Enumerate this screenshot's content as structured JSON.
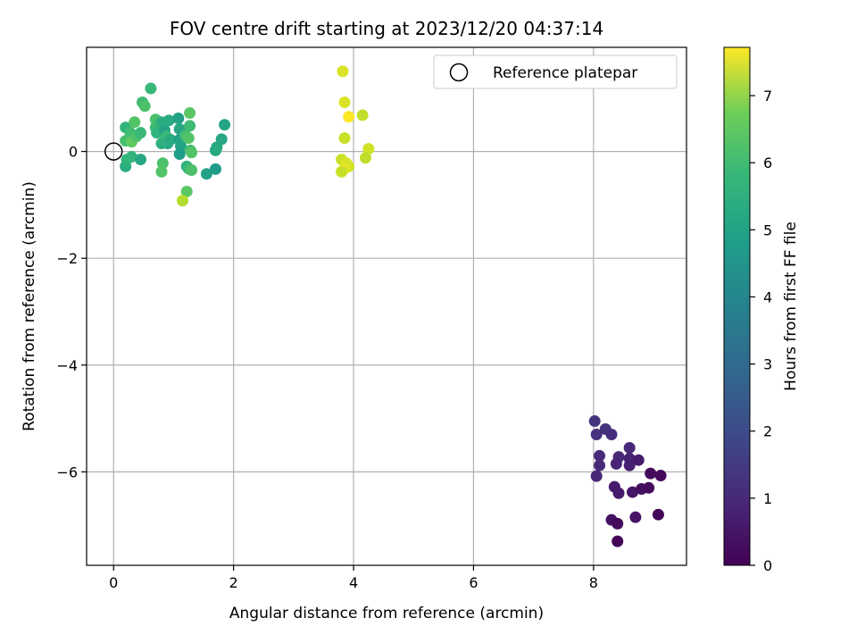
{
  "chart_data": {
    "type": "scatter",
    "title": "FOV centre drift starting at 2023/12/20 04:37:14",
    "xlabel": "Angular distance from reference (arcmin)",
    "ylabel": "Rotation from reference (arcmin)",
    "xlim": [
      -0.45,
      9.55
    ],
    "ylim": [
      -7.75,
      1.95
    ],
    "xticks": [
      0,
      2,
      4,
      6,
      8
    ],
    "yticks": [
      0,
      -2,
      -4,
      -6
    ],
    "xtick_labels": [
      "0",
      "2",
      "4",
      "6",
      "8"
    ],
    "ytick_labels": [
      "0",
      "−2",
      "−4",
      "−6"
    ],
    "grid": true,
    "legend": {
      "position": "top-right",
      "entries": [
        "Reference platepar"
      ]
    },
    "reference_point": {
      "x": 0,
      "y": 0
    },
    "colorbar": {
      "label": "Hours from first FF file",
      "range": [
        0,
        7.72
      ],
      "ticks": [
        0,
        1,
        2,
        3,
        4,
        5,
        6,
        7
      ],
      "colormap": "viridis"
    },
    "points": [
      {
        "x": 8.02,
        "y": -5.05,
        "c": 1.2
      },
      {
        "x": 8.05,
        "y": -5.3,
        "c": 1.1
      },
      {
        "x": 8.2,
        "y": -5.2,
        "c": 1.15
      },
      {
        "x": 8.3,
        "y": -5.3,
        "c": 1.0
      },
      {
        "x": 8.1,
        "y": -5.7,
        "c": 0.95
      },
      {
        "x": 8.1,
        "y": -5.88,
        "c": 0.9
      },
      {
        "x": 8.05,
        "y": -6.08,
        "c": 0.85
      },
      {
        "x": 8.42,
        "y": -5.72,
        "c": 0.9
      },
      {
        "x": 8.38,
        "y": -5.85,
        "c": 0.8
      },
      {
        "x": 8.6,
        "y": -5.55,
        "c": 0.85
      },
      {
        "x": 8.6,
        "y": -5.75,
        "c": 0.75
      },
      {
        "x": 8.6,
        "y": -5.88,
        "c": 0.7
      },
      {
        "x": 8.75,
        "y": -5.78,
        "c": 0.6
      },
      {
        "x": 8.35,
        "y": -6.28,
        "c": 0.55
      },
      {
        "x": 8.42,
        "y": -6.4,
        "c": 0.5
      },
      {
        "x": 8.65,
        "y": -6.38,
        "c": 0.45
      },
      {
        "x": 8.8,
        "y": -6.32,
        "c": 0.3
      },
      {
        "x": 8.92,
        "y": -6.3,
        "c": 0.25
      },
      {
        "x": 8.95,
        "y": -6.03,
        "c": 0.2
      },
      {
        "x": 9.12,
        "y": -6.07,
        "c": 0.15
      },
      {
        "x": 9.08,
        "y": -6.8,
        "c": 0.1
      },
      {
        "x": 8.3,
        "y": -6.9,
        "c": 0.35
      },
      {
        "x": 8.4,
        "y": -6.97,
        "c": 0.2
      },
      {
        "x": 8.7,
        "y": -6.85,
        "c": 0.4
      },
      {
        "x": 8.4,
        "y": -7.3,
        "c": 0.05
      },
      {
        "x": 0.2,
        "y": 0.45,
        "c": 5.0
      },
      {
        "x": 0.28,
        "y": 0.35,
        "c": 5.3
      },
      {
        "x": 0.35,
        "y": 0.55,
        "c": 5.6
      },
      {
        "x": 0.2,
        "y": 0.2,
        "c": 5.4
      },
      {
        "x": 0.3,
        "y": 0.18,
        "c": 5.8
      },
      {
        "x": 0.38,
        "y": 0.28,
        "c": 5.5
      },
      {
        "x": 0.45,
        "y": 0.35,
        "c": 5.2
      },
      {
        "x": 0.48,
        "y": 0.92,
        "c": 5.3
      },
      {
        "x": 0.52,
        "y": 0.85,
        "c": 5.5
      },
      {
        "x": 0.62,
        "y": 1.18,
        "c": 5.2
      },
      {
        "x": 0.2,
        "y": -0.28,
        "c": 4.8
      },
      {
        "x": 0.22,
        "y": -0.15,
        "c": 5.0
      },
      {
        "x": 0.3,
        "y": -0.1,
        "c": 5.1
      },
      {
        "x": 0.45,
        "y": -0.15,
        "c": 4.6
      },
      {
        "x": 0.7,
        "y": 0.6,
        "c": 5.5
      },
      {
        "x": 0.7,
        "y": 0.45,
        "c": 5.3
      },
      {
        "x": 0.72,
        "y": 0.35,
        "c": 5.0
      },
      {
        "x": 0.8,
        "y": 0.55,
        "c": 4.8
      },
      {
        "x": 0.85,
        "y": 0.4,
        "c": 4.5
      },
      {
        "x": 0.88,
        "y": 0.28,
        "c": 5.2
      },
      {
        "x": 0.9,
        "y": 0.15,
        "c": 4.6
      },
      {
        "x": 0.92,
        "y": 0.58,
        "c": 4.7
      },
      {
        "x": 0.8,
        "y": 0.15,
        "c": 4.9
      },
      {
        "x": 0.95,
        "y": 0.22,
        "c": 4.7
      },
      {
        "x": 0.82,
        "y": -0.22,
        "c": 5.5
      },
      {
        "x": 0.8,
        "y": -0.38,
        "c": 5.6
      },
      {
        "x": 1.08,
        "y": 0.62,
        "c": 4.4
      },
      {
        "x": 1.1,
        "y": 0.42,
        "c": 4.6
      },
      {
        "x": 1.1,
        "y": 0.22,
        "c": 4.4
      },
      {
        "x": 1.12,
        "y": 0.1,
        "c": 4.5
      },
      {
        "x": 1.1,
        "y": -0.05,
        "c": 4.3
      },
      {
        "x": 1.2,
        "y": 0.3,
        "c": 5.4
      },
      {
        "x": 1.27,
        "y": 0.48,
        "c": 5.3
      },
      {
        "x": 1.25,
        "y": 0.25,
        "c": 5.6
      },
      {
        "x": 1.27,
        "y": 0.72,
        "c": 5.7
      },
      {
        "x": 1.28,
        "y": 0.02,
        "c": 5.3
      },
      {
        "x": 1.3,
        "y": -0.02,
        "c": 5.6
      },
      {
        "x": 1.22,
        "y": -0.28,
        "c": 4.9
      },
      {
        "x": 1.25,
        "y": -0.32,
        "c": 5.2
      },
      {
        "x": 1.3,
        "y": -0.35,
        "c": 5.5
      },
      {
        "x": 1.22,
        "y": -0.75,
        "c": 5.7
      },
      {
        "x": 1.15,
        "y": -0.92,
        "c": 6.8
      },
      {
        "x": 1.55,
        "y": -0.42,
        "c": 4.4
      },
      {
        "x": 1.7,
        "y": -0.33,
        "c": 4.2
      },
      {
        "x": 1.7,
        "y": 0.02,
        "c": 4.6
      },
      {
        "x": 1.72,
        "y": 0.08,
        "c": 4.7
      },
      {
        "x": 1.8,
        "y": 0.23,
        "c": 4.6
      },
      {
        "x": 1.85,
        "y": 0.5,
        "c": 4.5
      },
      {
        "x": 3.82,
        "y": 1.5,
        "c": 7.3
      },
      {
        "x": 3.85,
        "y": 0.92,
        "c": 7.3
      },
      {
        "x": 3.92,
        "y": 0.65,
        "c": 7.7
      },
      {
        "x": 4.15,
        "y": 0.68,
        "c": 7.0
      },
      {
        "x": 3.85,
        "y": 0.25,
        "c": 7.1
      },
      {
        "x": 4.25,
        "y": 0.05,
        "c": 7.2
      },
      {
        "x": 4.2,
        "y": -0.12,
        "c": 7.0
      },
      {
        "x": 3.8,
        "y": -0.15,
        "c": 7.1
      },
      {
        "x": 3.88,
        "y": -0.22,
        "c": 7.3
      },
      {
        "x": 3.92,
        "y": -0.28,
        "c": 7.2
      },
      {
        "x": 3.85,
        "y": -0.32,
        "c": 7.4
      },
      {
        "x": 3.8,
        "y": -0.38,
        "c": 7.1
      }
    ]
  }
}
